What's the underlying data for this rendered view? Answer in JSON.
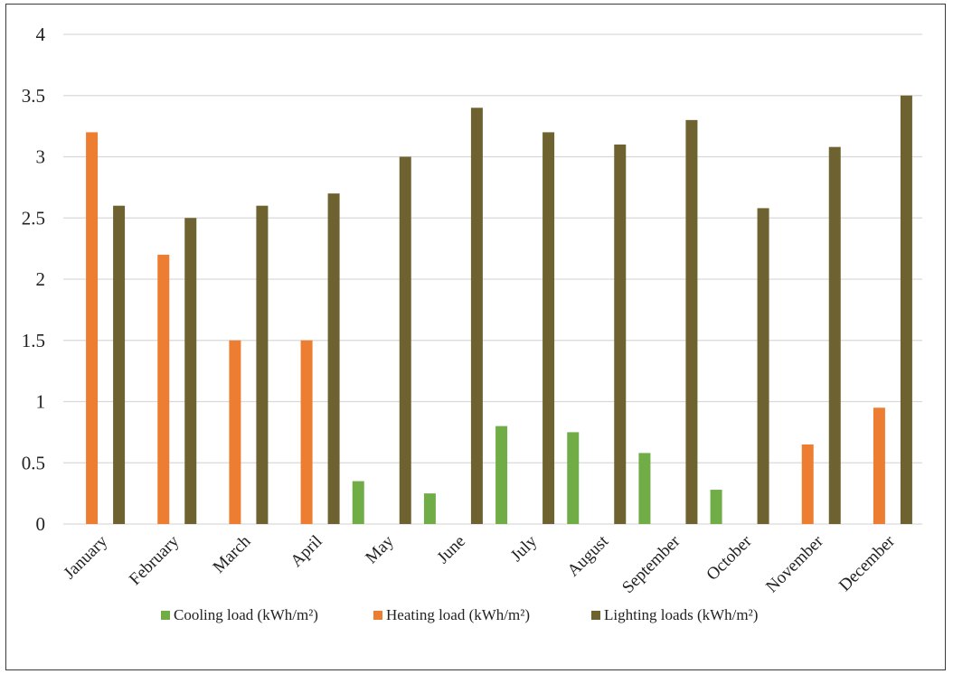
{
  "chart_data": {
    "type": "bar",
    "categories": [
      "January",
      "February",
      "March",
      "April",
      "May",
      "June",
      "July",
      "August",
      "September",
      "October",
      "November",
      "December"
    ],
    "series": [
      {
        "name": "Cooling load (kWh/m²)",
        "color": "#70ad47",
        "values": [
          0,
          0,
          0,
          0,
          0.35,
          0.25,
          0.8,
          0.75,
          0.58,
          0.28,
          0,
          0
        ]
      },
      {
        "name": "Heating load (kWh/m²)",
        "color": "#ed7d31",
        "values": [
          3.2,
          2.2,
          1.5,
          1.5,
          0,
          0,
          0,
          0,
          0,
          0,
          0.65,
          0.95
        ]
      },
      {
        "name": "Lighting loads (kWh/m²)",
        "color": "#6e6231",
        "values": [
          2.6,
          2.5,
          2.6,
          2.7,
          3.0,
          3.4,
          3.2,
          3.1,
          3.3,
          2.58,
          3.08,
          3.5
        ]
      }
    ],
    "yticks": [
      "0",
      "0.5",
      "1",
      "1.5",
      "2",
      "2.5",
      "3",
      "3.5",
      "4"
    ],
    "ylim": [
      0,
      4
    ],
    "grid": true,
    "legend": "bottom"
  }
}
